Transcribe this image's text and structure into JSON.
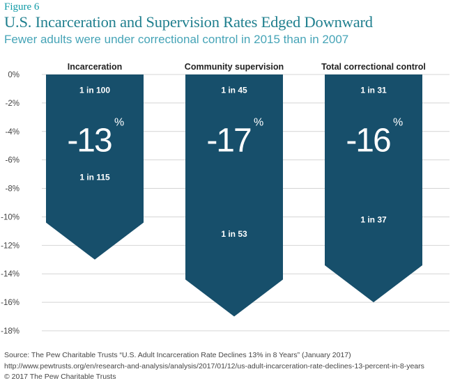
{
  "figure_label": "Figure 6",
  "title": "U.S. Incarceration and Supervision Rates Edged Downward",
  "subtitle": "Fewer adults were under correctional control in 2015 than in 2007",
  "source": "Source: The Pew Charitable Trusts “U.S. Adult Incarceration Rate Declines 13% in 8 Years” (January 2017) http://www.pewtrusts.org/en/research-and-analysis/analysis/2017/01/12/us-adult-incarceration-rate-declines-13-percent-in-8-years",
  "copyright": "© 2017 The Pew Charitable Trusts",
  "colors": {
    "bar": "#174f6b",
    "grid": "#d4d4d4",
    "text_on_bar": "#ffffff"
  },
  "chart_data": {
    "type": "bar",
    "ylim": [
      -18,
      0
    ],
    "ytick_values": [
      0,
      -2,
      -4,
      -6,
      -8,
      -10,
      -12,
      -14,
      -16,
      -18
    ],
    "ytick_labels": [
      "0%",
      "-2%",
      "-4%",
      "-6%",
      "-8%",
      "-10%",
      "-12%",
      "-14%",
      "-16%",
      "-18%"
    ],
    "grid": true,
    "categories": [
      "Incarceration",
      "Community supervision",
      "Total correctional control"
    ],
    "values": [
      -13,
      -17,
      -16
    ],
    "value_labels": [
      "-13",
      "-17",
      "-16"
    ],
    "value_unit": "%",
    "rate_2007": [
      "1 in 100",
      "1 in 45",
      "1 in 31"
    ],
    "rate_2015": [
      "1 in 115",
      "1 in 53",
      "1 in 37"
    ]
  }
}
